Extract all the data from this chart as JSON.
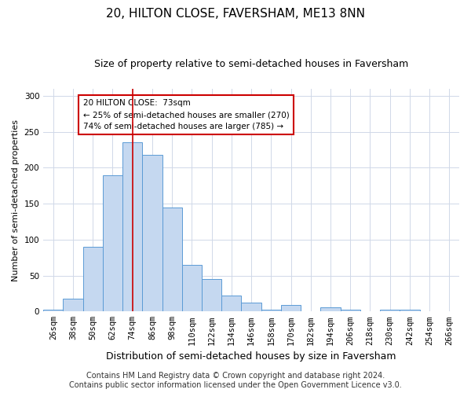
{
  "title": "20, HILTON CLOSE, FAVERSHAM, ME13 8NN",
  "subtitle": "Size of property relative to semi-detached houses in Faversham",
  "xlabel": "Distribution of semi-detached houses by size in Faversham",
  "ylabel": "Number of semi-detached properties",
  "categories": [
    "26sqm",
    "38sqm",
    "50sqm",
    "62sqm",
    "74sqm",
    "86sqm",
    "98sqm",
    "110sqm",
    "122sqm",
    "134sqm",
    "146sqm",
    "158sqm",
    "170sqm",
    "182sqm",
    "194sqm",
    "206sqm",
    "218sqm",
    "230sqm",
    "242sqm",
    "254sqm",
    "266sqm"
  ],
  "values": [
    3,
    18,
    90,
    190,
    235,
    218,
    145,
    65,
    45,
    22,
    12,
    3,
    9,
    0,
    6,
    2,
    0,
    3,
    3,
    0,
    0
  ],
  "bar_color": "#c5d8f0",
  "bar_edge_color": "#5b9bd5",
  "highlight_x": "74sqm",
  "highlight_line_color": "#cc0000",
  "annotation_line1": "20 HILTON CLOSE:  73sqm",
  "annotation_line2": "← 25% of semi-detached houses are smaller (270)",
  "annotation_line3": "74% of semi-detached houses are larger (785) →",
  "annotation_box_color": "#ffffff",
  "annotation_box_edge": "#cc0000",
  "footer_text": "Contains HM Land Registry data © Crown copyright and database right 2024.\nContains public sector information licensed under the Open Government Licence v3.0.",
  "ylim": [
    0,
    310
  ],
  "title_fontsize": 11,
  "subtitle_fontsize": 9,
  "ylabel_fontsize": 8,
  "xlabel_fontsize": 9,
  "tick_fontsize": 7.5,
  "annotation_fontsize": 7.5,
  "footer_fontsize": 7,
  "background_color": "#ffffff",
  "grid_color": "#d0d8e8"
}
